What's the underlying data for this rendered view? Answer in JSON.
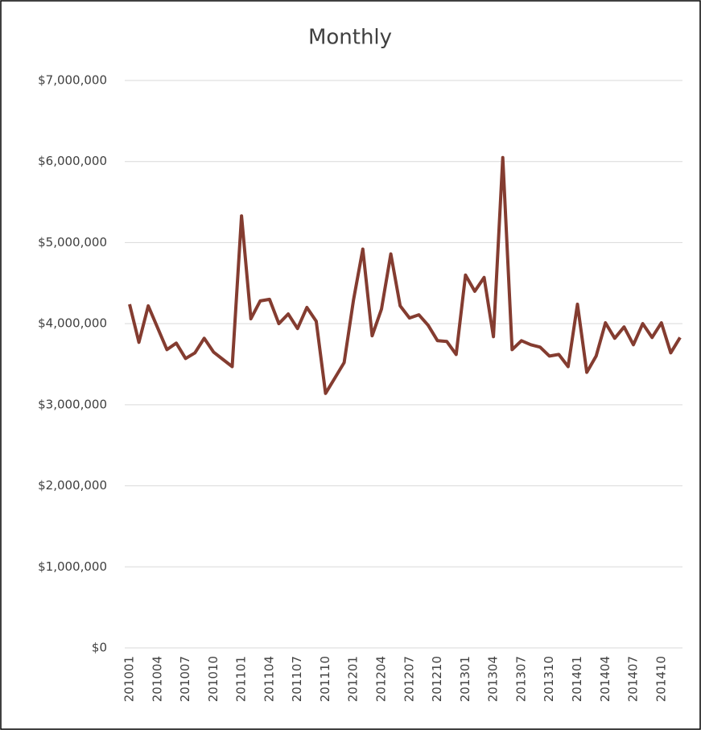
{
  "chart_data": {
    "type": "line",
    "title": "Monthly",
    "categories": [
      "201001",
      null,
      null,
      "201004",
      null,
      null,
      "201007",
      null,
      null,
      "201010",
      null,
      null,
      "201101",
      null,
      null,
      "201104",
      null,
      null,
      "201107",
      null,
      null,
      "201110",
      null,
      null,
      "201201",
      null,
      null,
      "201204",
      null,
      null,
      "201207",
      null,
      null,
      "201210",
      null,
      null,
      "201301",
      null,
      null,
      "201304",
      null,
      null,
      "201307",
      null,
      null,
      "201310",
      null,
      null,
      "201401",
      null,
      null,
      "201404",
      null,
      null,
      "201407",
      null,
      null,
      "201410",
      null,
      null
    ],
    "values": [
      4240000,
      3770000,
      4220000,
      3950000,
      3680000,
      3760000,
      3570000,
      3640000,
      3820000,
      3650000,
      3560000,
      3470000,
      5330000,
      4060000,
      4280000,
      4300000,
      4000000,
      4120000,
      3940000,
      4200000,
      4030000,
      3140000,
      3330000,
      3520000,
      4290000,
      4920000,
      3850000,
      4180000,
      4860000,
      4220000,
      4070000,
      4110000,
      3980000,
      3790000,
      3780000,
      3620000,
      4600000,
      4400000,
      4570000,
      3840000,
      6050000,
      3680000,
      3790000,
      3740000,
      3710000,
      3600000,
      3620000,
      3470000,
      4240000,
      3400000,
      3600000,
      4010000,
      3820000,
      3960000,
      3740000,
      4000000,
      3830000,
      4010000,
      3640000,
      3830000
    ],
    "color": "#843c30",
    "ylim": [
      0,
      7000000
    ],
    "yticks": [
      {
        "value": 0,
        "label": "$0"
      },
      {
        "value": 1000000,
        "label": "$1,000,000"
      },
      {
        "value": 2000000,
        "label": "$2,000,000"
      },
      {
        "value": 3000000,
        "label": "$3,000,000"
      },
      {
        "value": 4000000,
        "label": "$4,000,000"
      },
      {
        "value": 5000000,
        "label": "$5,000,000"
      },
      {
        "value": 6000000,
        "label": "$6,000,000"
      },
      {
        "value": 7000000,
        "label": "$7,000,000"
      }
    ],
    "grid": true
  }
}
